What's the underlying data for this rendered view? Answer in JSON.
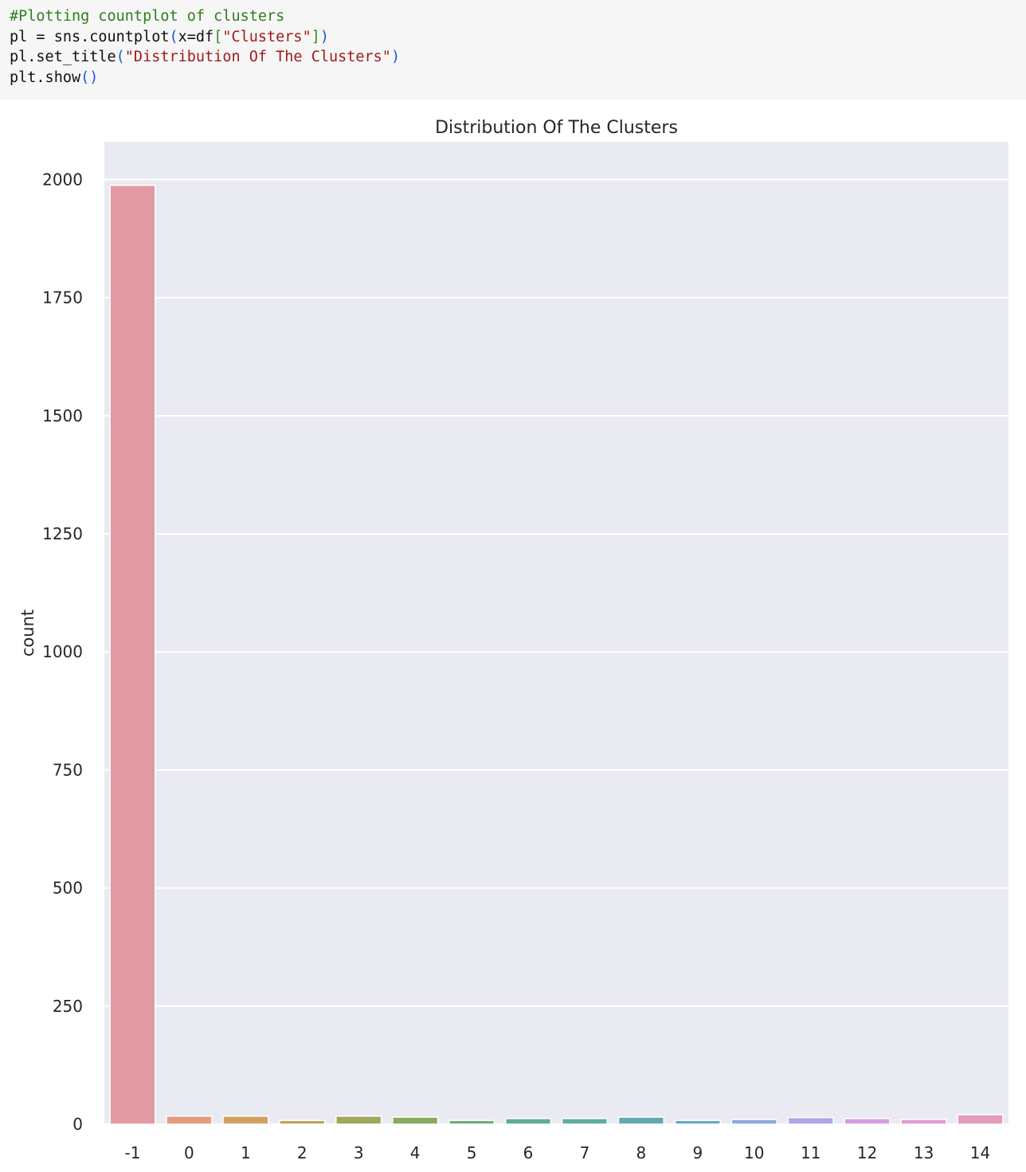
{
  "code": {
    "lines": [
      [
        {
          "t": "#Plotting countplot of clusters",
          "k": "comment"
        }
      ],
      [
        {
          "t": "pl = sns.countplot",
          "k": "plain"
        },
        {
          "t": "(",
          "k": "paren"
        },
        {
          "t": "x=df",
          "k": "plain"
        },
        {
          "t": "[",
          "k": "bracket"
        },
        {
          "t": "\"Clusters\"",
          "k": "string"
        },
        {
          "t": "]",
          "k": "bracket"
        },
        {
          "t": ")",
          "k": "paren"
        }
      ],
      [
        {
          "t": "pl.set_title",
          "k": "plain"
        },
        {
          "t": "(",
          "k": "paren"
        },
        {
          "t": "\"Distribution Of The Clusters\"",
          "k": "string"
        },
        {
          "t": ")",
          "k": "paren"
        }
      ],
      [
        {
          "t": "plt.show",
          "k": "plain"
        },
        {
          "t": "()",
          "k": "paren"
        }
      ]
    ]
  },
  "chart_data": {
    "type": "bar",
    "title": "Distribution Of The Clusters",
    "xlabel": "",
    "ylabel": "count",
    "categories": [
      "-1",
      "0",
      "1",
      "2",
      "3",
      "4",
      "5",
      "6",
      "7",
      "8",
      "9",
      "10",
      "11",
      "12",
      "13",
      "14"
    ],
    "values": [
      1988,
      17,
      17,
      8,
      17,
      15,
      8,
      12,
      12,
      15,
      8,
      10,
      14,
      12,
      10,
      20
    ],
    "colors": [
      "#e19aa3",
      "#e29c7f",
      "#cfa263",
      "#b9a55e",
      "#a0a65b",
      "#88ab5f",
      "#6eb07c",
      "#62ae92",
      "#5fad9f",
      "#62aab2",
      "#68a9c5",
      "#8fa8df",
      "#b3a3e7",
      "#d49ee2",
      "#e39bd3",
      "#e29bbb"
    ],
    "ylim": [
      0,
      2080
    ],
    "yticks": [
      0,
      250,
      500,
      750,
      1000,
      1250,
      1500,
      1750,
      2000
    ],
    "grid": true,
    "background": "#eaeaf2"
  }
}
